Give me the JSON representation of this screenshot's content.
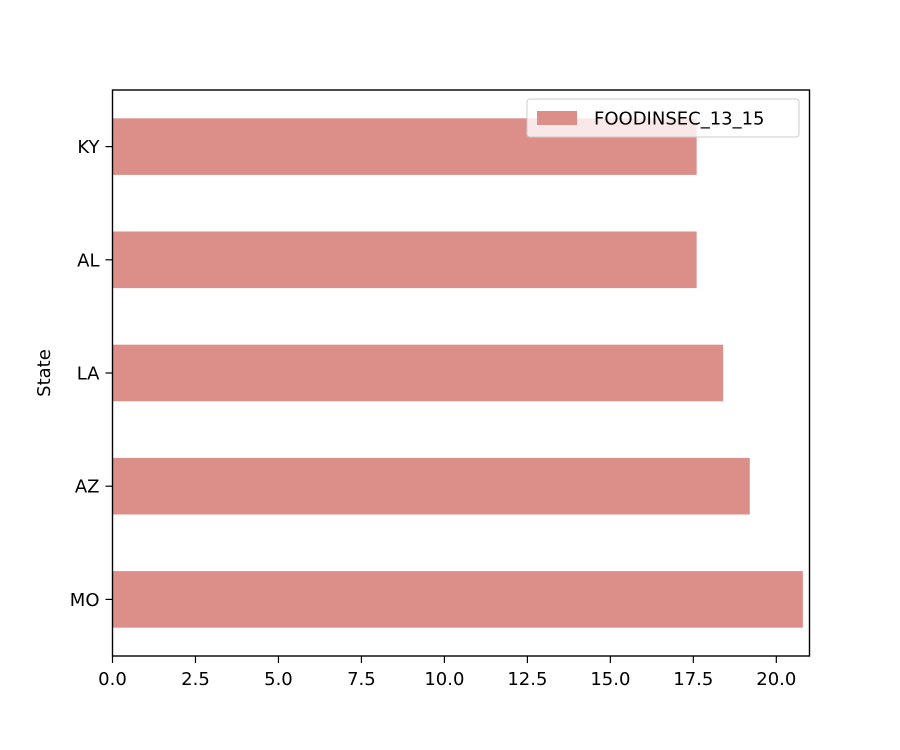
{
  "chart_data": {
    "type": "bar",
    "orientation": "horizontal",
    "ylabel": "State",
    "xlabel": "",
    "categories": [
      "MO",
      "AZ",
      "LA",
      "AL",
      "KY"
    ],
    "series": [
      {
        "name": "FOODINSEC_13_15",
        "values": [
          20.8,
          19.2,
          18.4,
          17.6,
          17.6
        ],
        "color": "#dc8e89"
      }
    ],
    "xlim": [
      0,
      21
    ],
    "xticks": [
      0,
      2.5,
      5,
      7.5,
      10,
      12.5,
      15,
      17.5,
      20
    ],
    "xtick_labels": [
      "0.0",
      "2.5",
      "5.0",
      "7.5",
      "10.0",
      "12.5",
      "15.0",
      "17.5",
      "20.0"
    ],
    "grid": false,
    "legend_position": "upper right"
  }
}
